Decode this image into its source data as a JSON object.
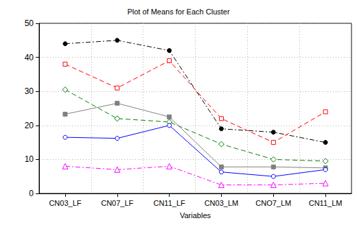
{
  "chart_data": {
    "type": "line",
    "title": "Plot of Means for Each Cluster",
    "xlabel": "Variables",
    "categories": [
      "CN03_LF",
      "CN07_LF",
      "CN11_LF",
      "CN03_LM",
      "CNO7_LM",
      "CN11_LM"
    ],
    "series": [
      {
        "color": "#000000",
        "marker": "filled_circle",
        "line_style": "dashdot",
        "values": [
          44,
          45,
          42,
          19,
          18,
          15
        ]
      },
      {
        "color": "#ff0000",
        "marker": "open_square",
        "line_style": "dashed",
        "values": [
          38,
          31,
          39,
          22,
          15,
          24
        ]
      },
      {
        "color": "#008000",
        "marker": "open_diamond",
        "line_style": "dashed",
        "values": [
          30.5,
          22,
          21,
          14.5,
          10,
          9.5
        ]
      },
      {
        "color": "#808080",
        "marker": "filled_square",
        "line_style": "solid",
        "values": [
          23.3,
          26.5,
          22.5,
          7.8,
          7.8,
          7.5
        ]
      },
      {
        "color": "#0000ff",
        "marker": "open_circle",
        "line_style": "solid",
        "values": [
          16.5,
          16.2,
          20,
          6.3,
          5,
          7
        ]
      },
      {
        "color": "#ff00ff",
        "marker": "open_triangle",
        "line_style": "dashdot",
        "values": [
          8,
          7,
          8,
          2.5,
          2.5,
          3
        ]
      }
    ],
    "ylim": [
      0,
      50
    ],
    "yticks": [
      0,
      10,
      20,
      30,
      40,
      50
    ],
    "grid": true
  }
}
